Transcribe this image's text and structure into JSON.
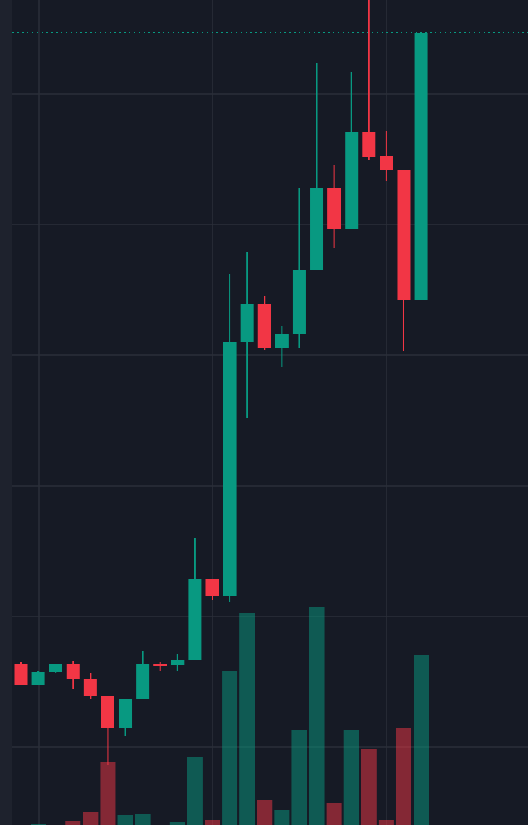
{
  "chart_data": {
    "type": "candlestick",
    "categories": [
      null,
      null,
      null,
      null,
      null,
      null,
      null,
      null,
      null,
      null,
      null,
      null,
      null,
      null,
      null,
      null,
      null,
      null,
      null,
      null,
      null,
      null,
      null,
      null
    ],
    "open": [
      231,
      202,
      220,
      231,
      210,
      185,
      140,
      182,
      231,
      230,
      237,
      354,
      330,
      695,
      750,
      686,
      706,
      799,
      917,
      858,
      997,
      962,
      942,
      756
    ],
    "high": [
      234,
      221,
      231,
      236,
      219,
      185,
      182,
      250,
      235,
      246,
      413,
      354,
      793,
      824,
      761,
      718,
      917,
      1096,
      949,
      1083,
      1187,
      999,
      942,
      1140
    ],
    "low": [
      201,
      201,
      218,
      196,
      182,
      87,
      128,
      182,
      222,
      221,
      237,
      324,
      321,
      586,
      683,
      659,
      687,
      799,
      830,
      858,
      957,
      926,
      682,
      756
    ],
    "close": [
      202,
      220,
      231,
      210,
      185,
      140,
      182,
      231,
      229,
      237,
      354,
      330,
      695,
      750,
      686,
      707,
      799,
      917,
      858,
      997,
      961,
      942,
      756,
      1140
    ],
    "volume": [
      0,
      2,
      0,
      6,
      19,
      90,
      15,
      16,
      0,
      4,
      98,
      7,
      222,
      305,
      36,
      21,
      136,
      313,
      32,
      137,
      110,
      7,
      140,
      245
    ],
    "up_color": "#089981",
    "down_color": "#f23645",
    "ylim": [
      0,
      1187
    ],
    "yticks": [
      112,
      300,
      488,
      676,
      864,
      1052
    ],
    "y2lim": [
      0,
      1187
    ],
    "grid": true,
    "last_price_line": true
  }
}
